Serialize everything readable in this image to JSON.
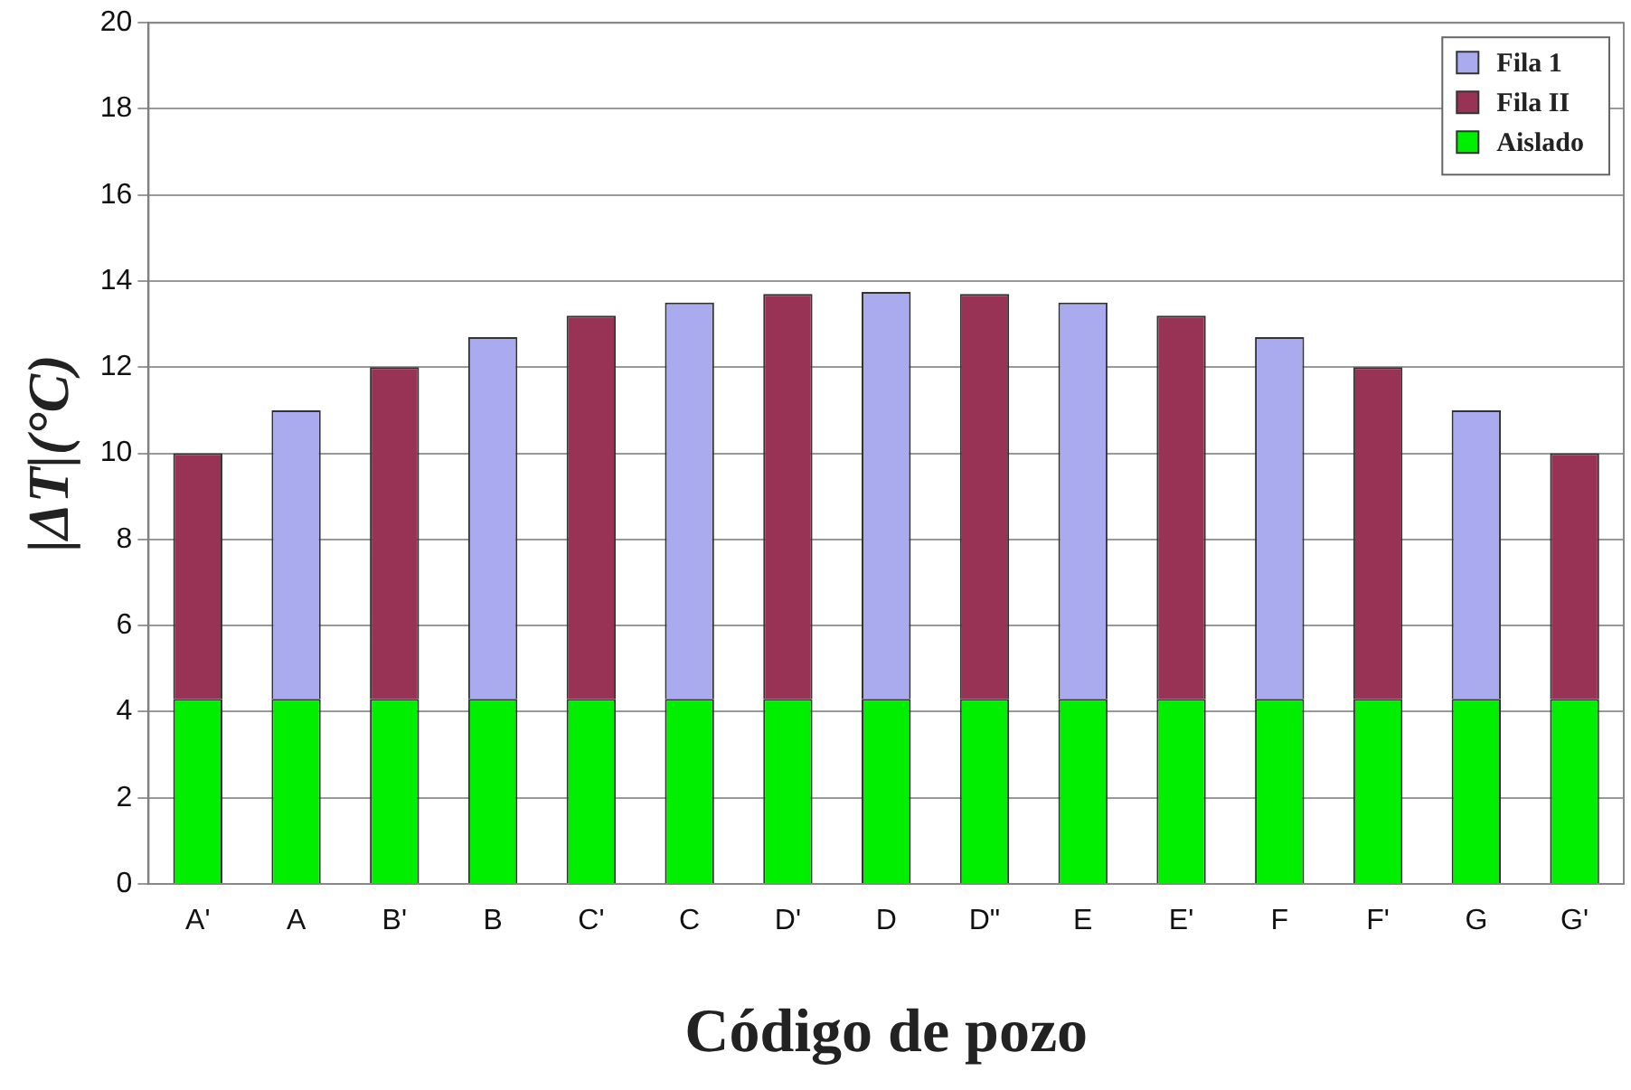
{
  "chart_data": {
    "type": "bar",
    "stacked": true,
    "xlabel": "Código de pozo",
    "ylabel": "|ΔT|(°C)",
    "categories": [
      "A'",
      "A",
      "B'",
      "B",
      "C'",
      "C",
      "D'",
      "D",
      "D\"",
      "E",
      "E'",
      "F",
      "F'",
      "G",
      "G'"
    ],
    "series": [
      {
        "name": "Aislado",
        "color": "#00ee00",
        "values": [
          4.3,
          4.3,
          4.3,
          4.3,
          4.3,
          4.3,
          4.3,
          4.3,
          4.3,
          4.3,
          4.3,
          4.3,
          4.3,
          4.3,
          4.3
        ]
      },
      {
        "name": "Fila II",
        "color": "#993355",
        "values": [
          5.7,
          null,
          7.7,
          null,
          8.9,
          null,
          9.4,
          null,
          9.4,
          null,
          8.9,
          null,
          7.7,
          null,
          5.7
        ]
      },
      {
        "name": "Fila 1",
        "color": "#aaaaee",
        "values": [
          null,
          6.7,
          null,
          8.4,
          null,
          9.2,
          null,
          9.45,
          null,
          9.2,
          null,
          8.4,
          null,
          6.7,
          null
        ]
      }
    ],
    "ylim": [
      0,
      20
    ],
    "yticks": [
      0,
      2,
      4,
      6,
      8,
      10,
      12,
      14,
      16,
      18,
      20
    ],
    "grid": "y",
    "legend": "top right"
  }
}
